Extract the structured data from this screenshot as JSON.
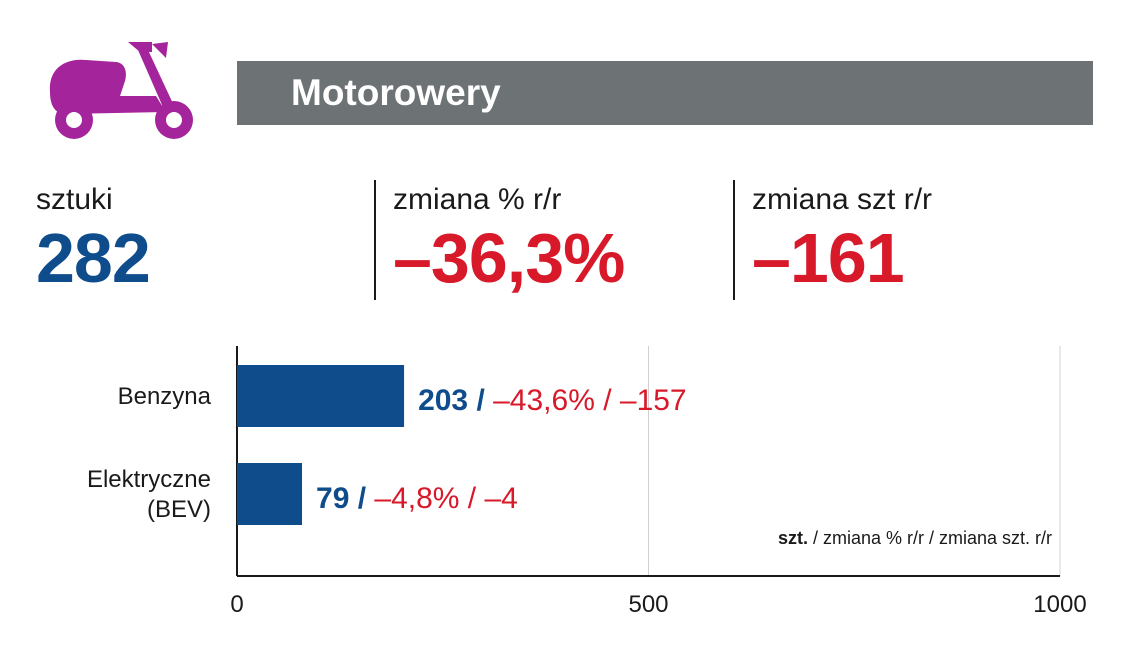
{
  "header": {
    "title": "Motorowery",
    "icon": "scooter-icon"
  },
  "stats": {
    "units": {
      "label": "sztuki",
      "value": "282"
    },
    "pct_change": {
      "label": "zmiana % r/r",
      "value": "–36,3%"
    },
    "abs_change": {
      "label": "zmiana szt r/r",
      "value": "–161"
    }
  },
  "colors": {
    "header_bg": "#6d7275",
    "icon": "#a3249b",
    "primary": "#0f4c8c",
    "negative": "#d7192a",
    "bar": "#0f4c8c"
  },
  "chart_data": {
    "type": "bar",
    "orientation": "horizontal",
    "categories": [
      "Benzyna",
      "Elektryczne (BEV)"
    ],
    "category_lines": [
      [
        "Benzyna"
      ],
      [
        "Elektryczne",
        "(BEV)"
      ]
    ],
    "values": [
      203,
      79
    ],
    "value_labels": [
      "203 /",
      "79 /"
    ],
    "change_labels": [
      "–43,6% / –157",
      "–4,8% / –4"
    ],
    "pct_change": [
      -43.6,
      -4.8
    ],
    "abs_change": [
      -157,
      -4
    ],
    "xlim": [
      0,
      1000
    ],
    "xticks": [
      0,
      500,
      1000
    ],
    "xtick_labels": [
      "0",
      "500",
      "1000"
    ],
    "grid": true,
    "note": {
      "bold": "szt.",
      "rest": " / zmiana % r/r / zmiana szt. r/r"
    }
  }
}
